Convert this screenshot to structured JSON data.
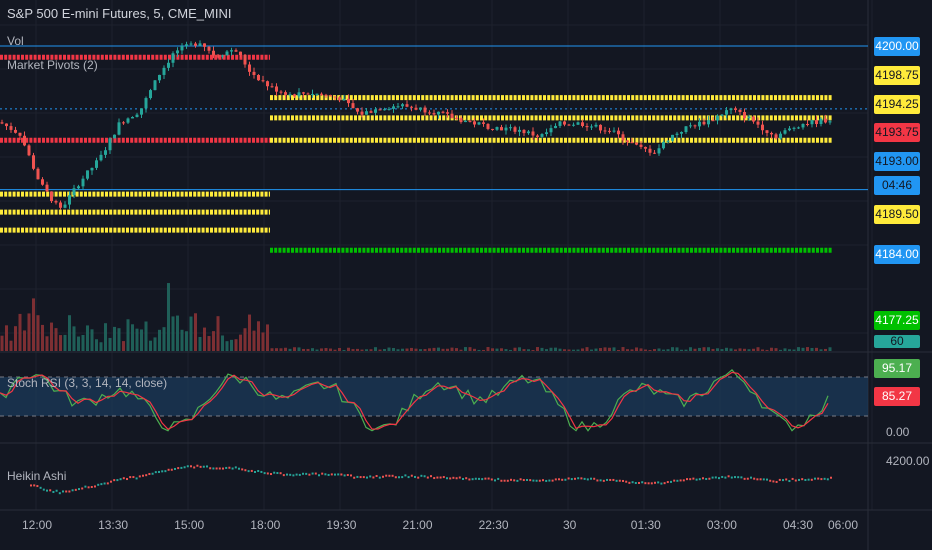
{
  "header": {
    "symbol_line": "S&P 500 E-mini Futures, 5, CME_MINI",
    "indicator_vol": "Vol",
    "indicator_pivots": "Market Pivots (2)",
    "indicator_stoch": "Stoch RSI (3, 3, 14, 14, close)",
    "indicator_heikin": "Heikin Ashi"
  },
  "chart_data": [
    {
      "type": "candlestick",
      "title": "S&P 500 E-mini Futures, 5, CME_MINI",
      "x_ticks": [
        "12:00",
        "13:30",
        "15:00",
        "18:00",
        "19:30",
        "21:00",
        "22:30",
        "30",
        "01:30",
        "03:00",
        "04:30",
        "06:00"
      ],
      "price_badges": [
        {
          "value": "4200.00",
          "bg": "#2196f3",
          "fg": "#ffffff"
        },
        {
          "value": "4198.75",
          "bg": "#ffeb3b",
          "fg": "#131722"
        },
        {
          "value": "4194.25",
          "bg": "#ffeb3b",
          "fg": "#131722"
        },
        {
          "value": "4193.75",
          "bg": "#f23645",
          "fg": "#131722"
        },
        {
          "value": "4193.00",
          "bg": "#2196f3",
          "fg": "#131722"
        },
        {
          "value": "04:46",
          "bg": "#2196f3",
          "fg": "#131722"
        },
        {
          "value": "4189.50",
          "bg": "#ffeb3b",
          "fg": "#131722"
        },
        {
          "value": "4184.00",
          "bg": "#2196f3",
          "fg": "#ffffff"
        },
        {
          "value": "4177.25",
          "bg": "#00c000",
          "fg": "#ffffff"
        }
      ],
      "horizontal_lines": [
        4200.0,
        4193.0,
        4184.0
      ],
      "pivot_levels": [
        {
          "color": "#f23645",
          "value": 4198.75,
          "segment": "before 18:00"
        },
        {
          "color": "#f23645",
          "value": 4189.5,
          "segment": "before 18:00"
        },
        {
          "color": "#ffeb3b",
          "value": 4194.25,
          "segment": "after 18:00"
        },
        {
          "color": "#ffeb3b",
          "value": 4192.0,
          "segment": "after 18:00"
        },
        {
          "color": "#ffeb3b",
          "value": 4189.5,
          "segment": "after 18:00"
        },
        {
          "color": "#ffeb3b",
          "value": 4183.5,
          "segment": "before 18:00"
        },
        {
          "color": "#ffeb3b",
          "value": 4181.5,
          "segment": "before 18:00"
        },
        {
          "color": "#ffeb3b",
          "value": 4179.5,
          "segment": "before 18:00"
        },
        {
          "color": "#00c000",
          "value": 4177.25,
          "segment": "after 18:00"
        }
      ],
      "volume_badge": "60"
    },
    {
      "type": "line",
      "title": "Stoch RSI (3, 3, 14, 14, close)",
      "ylim": [
        0,
        100
      ],
      "band": [
        20,
        80
      ],
      "badges": [
        {
          "value": "95.17",
          "bg": "#4caf50",
          "fg": "#ffffff"
        },
        {
          "value": "85.27",
          "bg": "#f23645",
          "fg": "#ffffff"
        }
      ],
      "axis_label": "0.00"
    },
    {
      "type": "scatter",
      "title": "Heikin Ashi",
      "axis_label": "4200.00"
    }
  ]
}
